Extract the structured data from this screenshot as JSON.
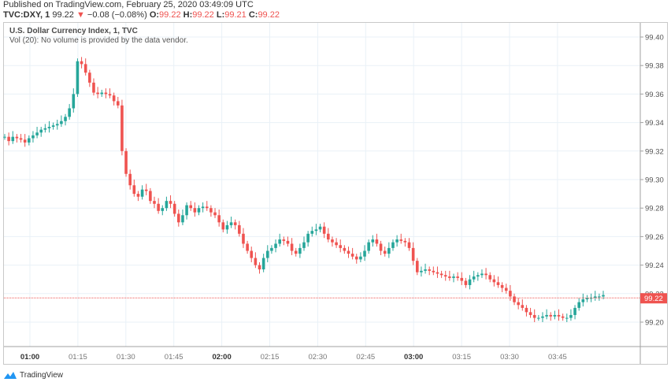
{
  "header": {
    "published": "Published on TradingView.com, February 25, 2020 03:49:09 UTC",
    "symbol": "TVC:DXY, 1",
    "last": "99.22",
    "change": "−0.08 (−0.08%)",
    "o_label": "O:",
    "o": "99.22",
    "h_label": "H:",
    "h": "99.22",
    "l_label": "L:",
    "l": "99.21",
    "c_label": "C:",
    "c": "99.22"
  },
  "legend": {
    "title": "U.S. Dollar Currency Index, 1, TVC",
    "volume": "Vol (20): No volume is provided by the data vendor."
  },
  "footer": {
    "brand": "TradingView"
  },
  "colors": {
    "up": "#26a69a",
    "down": "#ef5350",
    "grid": "#e9f1f7",
    "axis": "#a0a0a0",
    "price_tag": "#ef5350"
  },
  "chart_data": {
    "type": "candlestick",
    "title": "U.S. Dollar Currency Index, 1, TVC",
    "xlabel": "",
    "ylabel": "",
    "y_ticks": [
      "99.40",
      "99.38",
      "99.36",
      "99.34",
      "99.32",
      "99.30",
      "99.28",
      "99.26",
      "99.24",
      "99.22",
      "99.20"
    ],
    "x_ticks": [
      "01:00",
      "01:15",
      "01:30",
      "01:45",
      "02:00",
      "02:15",
      "02:30",
      "02:45",
      "03:00",
      "03:15",
      "03:30",
      "03:45"
    ],
    "ylim": [
      99.185,
      99.415
    ],
    "current_price": "99.22",
    "close_path": [
      99.33,
      99.327,
      99.33,
      99.329,
      99.328,
      99.326,
      99.329,
      99.331,
      99.333,
      99.335,
      99.336,
      99.337,
      99.338,
      99.339,
      99.341,
      99.344,
      99.35,
      99.36,
      99.383,
      99.381,
      99.375,
      99.368,
      99.361,
      99.36,
      99.361,
      99.36,
      99.359,
      99.355,
      99.352,
      99.32,
      99.304,
      99.296,
      99.29,
      99.288,
      99.293,
      99.292,
      99.285,
      99.283,
      99.278,
      99.28,
      99.285,
      99.283,
      99.276,
      99.27,
      99.275,
      99.282,
      99.28,
      99.277,
      99.28,
      99.281,
      99.28,
      99.277,
      99.275,
      99.27,
      99.265,
      99.268,
      99.27,
      99.268,
      99.262,
      99.255,
      99.25,
      99.245,
      99.24,
      99.237,
      99.245,
      99.25,
      99.252,
      99.255,
      99.258,
      99.257,
      99.255,
      99.25,
      99.248,
      99.252,
      99.256,
      99.262,
      99.264,
      99.265,
      99.267,
      99.262,
      99.258,
      99.256,
      99.254,
      99.252,
      99.25,
      99.248,
      99.246,
      99.244,
      99.246,
      99.25,
      99.256,
      99.258,
      99.255,
      99.25,
      99.248,
      99.252,
      99.256,
      99.258,
      99.257,
      99.256,
      99.252,
      99.243,
      99.235,
      99.236,
      99.237,
      99.236,
      99.235,
      99.234,
      99.233,
      99.232,
      99.231,
      99.232,
      99.231,
      99.229,
      99.226,
      99.23,
      99.232,
      99.233,
      99.234,
      99.233,
      99.23,
      99.228,
      99.226,
      99.224,
      99.222,
      99.218,
      99.214,
      99.212,
      99.21,
      99.207,
      99.205,
      99.203,
      99.203,
      99.204,
      99.205,
      99.204,
      99.205,
      99.204,
      99.203,
      99.203,
      99.205,
      99.21,
      99.214,
      99.216,
      99.217,
      99.217,
      99.218,
      99.218,
      99.219
    ]
  }
}
